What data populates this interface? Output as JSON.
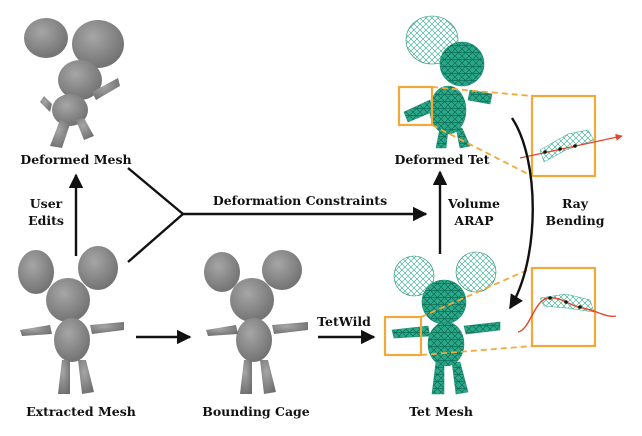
{
  "labels": {
    "deformed_mesh": "Deformed Mesh",
    "user_edits_line1": "User",
    "user_edits_line2": "Edits",
    "deformation_constraints": "Deformation Constraints",
    "deformed_tet": "Deformed Tet",
    "volume_arap_line1": "Volume",
    "volume_arap_line2": "ARAP",
    "ray_bending_line1": "Ray",
    "ray_bending_line2": "Bending",
    "tetwild": "TetWild",
    "extracted_mesh": "Extracted Mesh",
    "bounding_cage": "Bounding Cage",
    "tet_mesh": "Tet Mesh"
  },
  "colors": {
    "mesh_gray": "#8a8a8a",
    "tet_teal": "#1f9a7c",
    "highlight_orange": "#f2a93b",
    "ray_red": "#e2462b",
    "arrow_black": "#111111"
  }
}
